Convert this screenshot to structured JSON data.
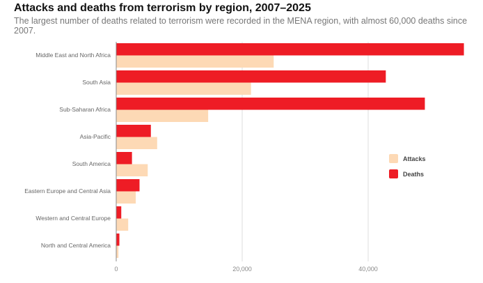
{
  "chart_data": {
    "type": "bar",
    "orientation": "horizontal",
    "title": "Attacks and deaths from terrorism by region, 2007–2025",
    "subtitle": "The largest number of deaths related to terrorism were recorded in the MENA region, with almost 60,000 deaths since 2007.",
    "categories": [
      "Middle East and North Africa",
      "South Asia",
      "Sub-Saharan Africa",
      "Asia-Pacific",
      "South America",
      "Eastern Europe and Central Asia",
      "Western and Central Europe",
      "North and Central America"
    ],
    "series": [
      {
        "name": "Deaths",
        "color": "#ee1c25",
        "values": [
          55200,
          42800,
          49000,
          5500,
          2500,
          3700,
          800,
          500
        ]
      },
      {
        "name": "Attacks",
        "color": "#fdd9b5",
        "values": [
          25000,
          21400,
          14600,
          6500,
          5000,
          3100,
          1900,
          350
        ]
      }
    ],
    "xlim": [
      0,
      55500
    ],
    "xticks": [
      0,
      20000,
      40000
    ],
    "xtick_labels": [
      "0",
      "20,000",
      "40,000"
    ],
    "grid": true,
    "legend": {
      "placement": "right",
      "entries": [
        "Attacks",
        "Deaths"
      ]
    }
  }
}
